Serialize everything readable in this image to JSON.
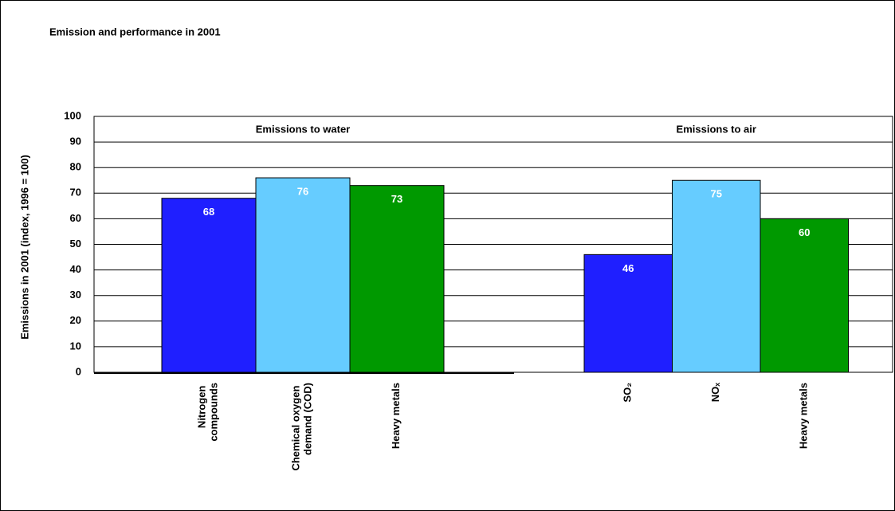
{
  "chart_data": {
    "type": "bar",
    "title": "Emission and performance in 2001",
    "y_label": "Emissions in 2001 (index, 1996 = 100)",
    "ylim": [
      0,
      100
    ],
    "yticks": [
      0,
      10,
      20,
      30,
      40,
      50,
      60,
      70,
      80,
      90,
      100
    ],
    "grid": true,
    "groups": [
      {
        "label": "Emissions to water",
        "categories": [
          "Nitrogen compounds",
          "Chemical oxygen demand (COD)",
          "Heavy metals"
        ],
        "values": [
          68,
          76,
          73
        ],
        "colors": [
          "#1f1fff",
          "#66ccff",
          "#009900"
        ]
      },
      {
        "label": "Emissions to air",
        "categories": [
          "SO₂",
          "NOₓ",
          "Heavy metals"
        ],
        "values": [
          46,
          75,
          60
        ],
        "colors": [
          "#1f1fff",
          "#66ccff",
          "#009900"
        ]
      }
    ]
  }
}
